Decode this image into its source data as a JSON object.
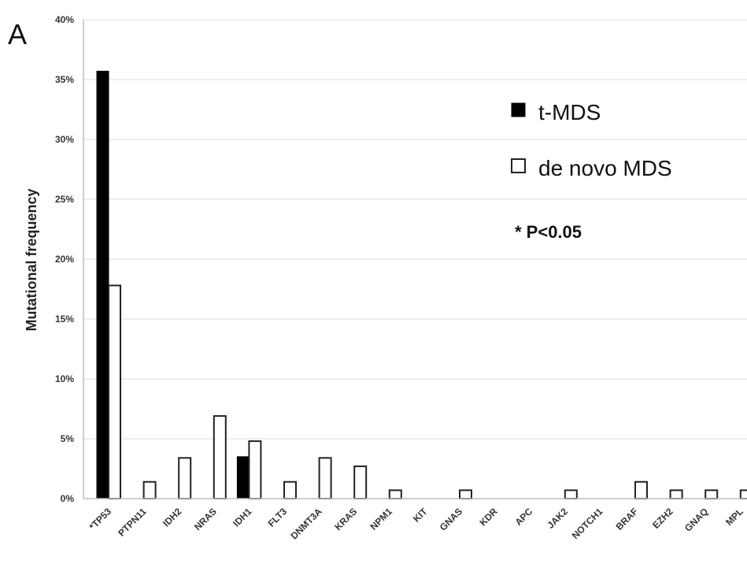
{
  "panel_label": "A",
  "annotation": "* P<0.05",
  "chart_data": {
    "type": "bar",
    "title": "",
    "xlabel": "",
    "ylabel": "Mutational frequency",
    "ylim": [
      0,
      40
    ],
    "yticks": [
      0,
      5,
      10,
      15,
      20,
      25,
      30,
      35,
      40
    ],
    "ytick_labels": [
      "0%",
      "5%",
      "10%",
      "15%",
      "20%",
      "25%",
      "30%",
      "35%",
      "40%"
    ],
    "grid": true,
    "legend_position": "top-right",
    "categories": [
      "*TP53",
      "PTPN11",
      "IDH2",
      "NRAS",
      "IDH1",
      "FLT3",
      "DNMT3A",
      "KRAS",
      "NPM1",
      "KIT",
      "GNAS",
      "KDR",
      "APC",
      "JAK2",
      "NOTCH1",
      "BRAF",
      "EZH2",
      "GNAQ",
      "MPL"
    ],
    "series": [
      {
        "name": "t-MDS",
        "color": "#000000",
        "values": [
          35.7,
          0,
          0,
          0,
          3.5,
          0,
          0,
          0,
          0,
          0,
          0,
          0,
          0,
          0,
          0,
          0,
          0,
          0,
          0
        ]
      },
      {
        "name": "de novo MDS",
        "color": "#ffffff",
        "values": [
          17.8,
          1.4,
          3.4,
          6.9,
          4.8,
          1.4,
          3.4,
          2.7,
          0.7,
          0,
          0.7,
          0,
          0,
          0.7,
          0,
          1.4,
          0.7,
          0.7,
          0.7
        ]
      }
    ]
  }
}
